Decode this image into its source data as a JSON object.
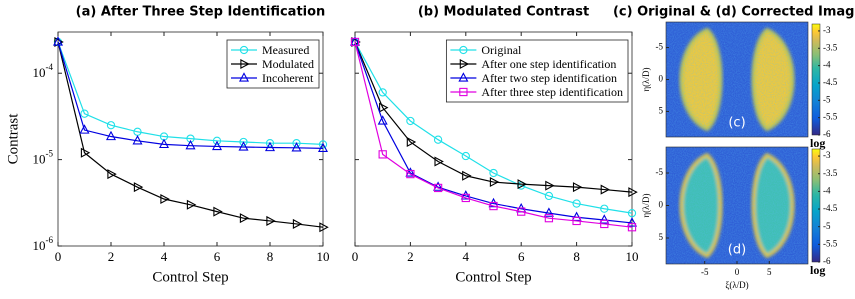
{
  "chart_data": [
    {
      "type": "line",
      "title": "(a) After Three Step Identification",
      "xlabel": "Control Step",
      "ylabel": "Contrast",
      "x": [
        0,
        1,
        2,
        3,
        4,
        5,
        6,
        7,
        8,
        9,
        10
      ],
      "xlim": [
        0,
        10
      ],
      "xticks": [
        0,
        2,
        4,
        6,
        8,
        10
      ],
      "ylog": true,
      "ylim": [
        1e-06,
        0.0003
      ],
      "yticks": [
        {
          "value": 1e-06,
          "label": "10-6"
        },
        {
          "value": 1e-05,
          "label": "10-5"
        },
        {
          "value": 0.0001,
          "label": "10-4"
        }
      ],
      "show_ytick_labels": true,
      "legend": "upper right",
      "series": [
        {
          "name": "Measured",
          "color": "#20e0e8",
          "marker": "circle",
          "values": [
            0.00023,
            3.4e-05,
            2.5e-05,
            2.1e-05,
            1.85e-05,
            1.75e-05,
            1.65e-05,
            1.6e-05,
            1.55e-05,
            1.55e-05,
            1.5e-05
          ]
        },
        {
          "name": "Modulated",
          "color": "#000000",
          "marker": "triangle-right",
          "values": [
            0.00023,
            1.2e-05,
            6.8e-06,
            4.8e-06,
            3.5e-06,
            3e-06,
            2.5e-06,
            2.1e-06,
            1.95e-06,
            1.8e-06,
            1.65e-06
          ]
        },
        {
          "name": "Incoherent",
          "color": "#0000e0",
          "marker": "triangle-up",
          "values": [
            0.00023,
            2.2e-05,
            1.85e-05,
            1.65e-05,
            1.5e-05,
            1.45e-05,
            1.42e-05,
            1.4e-05,
            1.38e-05,
            1.37e-05,
            1.35e-05
          ]
        }
      ]
    },
    {
      "type": "line",
      "title": "(b) Modulated Contrast",
      "xlabel": "Control Step",
      "x": [
        0,
        1,
        2,
        3,
        4,
        5,
        6,
        7,
        8,
        9,
        10
      ],
      "xlim": [
        0,
        10
      ],
      "xticks": [
        0,
        2,
        4,
        6,
        8,
        10
      ],
      "ylog": true,
      "ylim": [
        1e-06,
        0.0003
      ],
      "yticks": [
        1e-06,
        1e-05,
        0.0001
      ],
      "show_ytick_labels": false,
      "legend": "upper right",
      "series": [
        {
          "name": "Original",
          "color": "#20e0e8",
          "marker": "circle",
          "values": [
            0.00023,
            6e-05,
            2.8e-05,
            1.7e-05,
            1.1e-05,
            7e-06,
            5e-06,
            3.8e-06,
            3.1e-06,
            2.7e-06,
            2.4e-06
          ]
        },
        {
          "name": "After one step identification",
          "color": "#000000",
          "marker": "triangle-right",
          "values": [
            0.00023,
            4e-05,
            1.6e-05,
            9.5e-06,
            6.5e-06,
            5.5e-06,
            5.2e-06,
            5e-06,
            4.8e-06,
            4.5e-06,
            4.2e-06
          ]
        },
        {
          "name": "After two step identification",
          "color": "#0000e0",
          "marker": "triangle-up",
          "values": [
            0.00023,
            2.8e-05,
            7e-06,
            4.8e-06,
            3.8e-06,
            3.1e-06,
            2.7e-06,
            2.4e-06,
            2.15e-06,
            2e-06,
            1.85e-06
          ]
        },
        {
          "name": "After three step identification",
          "color": "#e000e0",
          "marker": "square",
          "values": [
            0.00023,
            1.15e-05,
            6.8e-06,
            4.7e-06,
            3.6e-06,
            2.9e-06,
            2.5e-06,
            2.1e-06,
            1.95e-06,
            1.8e-06,
            1.65e-06
          ]
        }
      ]
    }
  ],
  "images": {
    "title": "(c) Original & (d) Corrected Images",
    "xlabel": "ξ(λ/D)",
    "ylabel": "η(λ/D)",
    "xlim": [
      -11,
      11
    ],
    "ylim": [
      -9,
      9
    ],
    "xticks": [
      -5,
      0,
      5
    ],
    "yticks": [
      -5,
      0,
      5
    ],
    "colorbar": {
      "lim": [
        -6,
        -2.8
      ],
      "ticks": [
        -3,
        -3.5,
        -4,
        -4.5,
        -5,
        -5.5,
        -6
      ],
      "label": "log"
    },
    "panels": [
      {
        "label": "(c)"
      },
      {
        "label": "(d)"
      }
    ]
  }
}
